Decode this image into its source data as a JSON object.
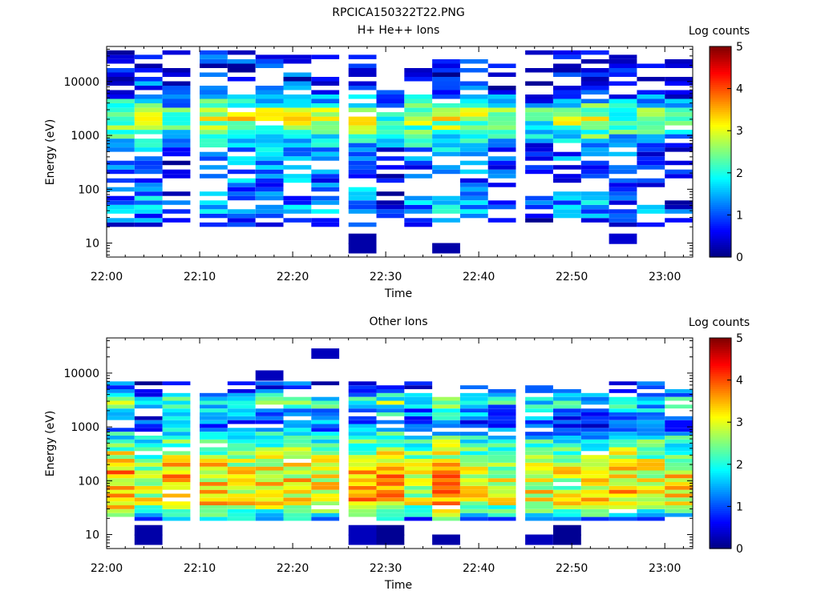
{
  "figure": {
    "title": "RPCICA150322T22.PNG"
  },
  "palette": {
    "background": "#ffffff",
    "axis": "#000000"
  },
  "colormap": {
    "name": "jet",
    "stops": [
      "#00007f",
      "#0000ff",
      "#007fff",
      "#00ffff",
      "#7fff7f",
      "#ffff00",
      "#ff7f00",
      "#ff0000",
      "#7f0000"
    ]
  },
  "chart_data": [
    {
      "type": "heatmap",
      "title": "H+ He++ Ions",
      "xlabel": "Time",
      "ylabel": "Energy (eV)",
      "yscale": "log",
      "ylim": [
        5.5,
        45000
      ],
      "xlim": [
        "22:00",
        "23:03"
      ],
      "x_ticks": [
        "22:00",
        "22:10",
        "22:20",
        "22:30",
        "22:40",
        "22:50",
        "23:00"
      ],
      "y_ticks": [
        "10",
        "100",
        "1000",
        "10000"
      ],
      "colorbar": {
        "label": "Log counts",
        "range": [
          0,
          5
        ],
        "ticks": [
          "0",
          "1",
          "2",
          "3",
          "4",
          "5"
        ]
      },
      "grid": false,
      "time_bins": [
        "22:00",
        "22:03",
        "22:06",
        "22:10",
        "22:13",
        "22:16",
        "22:19",
        "22:22",
        "22:26",
        "22:29",
        "22:32",
        "22:35",
        "22:38",
        "22:41",
        "22:45",
        "22:48",
        "22:51",
        "22:54",
        "22:57",
        "23:00"
      ],
      "energy_min_eV": 20,
      "energy_max_eV": 38000,
      "energy_bins": 40,
      "profile_log_counts": {
        "energy_eV": [
          20,
          40,
          80,
          200,
          500,
          1000,
          2000,
          3000,
          6000,
          12000,
          30000
        ],
        "mean": [
          0.3,
          1.2,
          0.9,
          0.8,
          1.0,
          1.9,
          2.6,
          2.3,
          0.8,
          0.4,
          0.3
        ]
      },
      "extra_pixels": [
        {
          "time": "22:26",
          "energy_eV": 8,
          "log_counts": 0.2
        },
        {
          "time": "22:26",
          "energy_eV": 12,
          "log_counts": 0.2
        },
        {
          "time": "22:35",
          "energy_eV": 8,
          "log_counts": 0.2
        },
        {
          "time": "22:54",
          "energy_eV": 12,
          "log_counts": 0.4
        }
      ]
    },
    {
      "type": "heatmap",
      "title": "Other Ions",
      "xlabel": "Time",
      "ylabel": "Energy (eV)",
      "yscale": "log",
      "ylim": [
        5.5,
        45000
      ],
      "xlim": [
        "22:00",
        "23:03"
      ],
      "x_ticks": [
        "22:00",
        "22:10",
        "22:20",
        "22:30",
        "22:40",
        "22:50",
        "23:00"
      ],
      "y_ticks": [
        "10",
        "100",
        "1000",
        "10000"
      ],
      "colorbar": {
        "label": "Log counts",
        "range": [
          0,
          5
        ],
        "ticks": [
          "0",
          "1",
          "2",
          "3",
          "4",
          "5"
        ]
      },
      "grid": false,
      "time_bins": [
        "22:00",
        "22:03",
        "22:06",
        "22:10",
        "22:13",
        "22:16",
        "22:19",
        "22:22",
        "22:26",
        "22:29",
        "22:32",
        "22:35",
        "22:38",
        "22:41",
        "22:45",
        "22:48",
        "22:51",
        "22:54",
        "22:57",
        "23:00"
      ],
      "energy_min_eV": 18,
      "energy_max_eV": 7000,
      "energy_bins": 36,
      "profile_log_counts": {
        "energy_eV": [
          18,
          25,
          40,
          70,
          150,
          300,
          600,
          1000,
          2000,
          3000,
          5000
        ],
        "mean": [
          1.2,
          2.1,
          3.2,
          3.0,
          3.1,
          2.6,
          1.9,
          1.0,
          1.4,
          2.2,
          0.7
        ]
      },
      "extra_pixels": [
        {
          "time": "22:03",
          "energy_eV": 8,
          "log_counts": 0.2
        },
        {
          "time": "22:03",
          "energy_eV": 12,
          "log_counts": 0.2
        },
        {
          "time": "22:16",
          "energy_eV": 9000,
          "log_counts": 0.3
        },
        {
          "time": "22:22",
          "energy_eV": 23000,
          "log_counts": 0.3
        },
        {
          "time": "22:26",
          "energy_eV": 8,
          "log_counts": 0.3
        },
        {
          "time": "22:26",
          "energy_eV": 12,
          "log_counts": 0.3
        },
        {
          "time": "22:29",
          "energy_eV": 8,
          "log_counts": 0.1
        },
        {
          "time": "22:29",
          "energy_eV": 12,
          "log_counts": 0.1
        },
        {
          "time": "22:35",
          "energy_eV": 8,
          "log_counts": 0.2
        },
        {
          "time": "22:45",
          "energy_eV": 8,
          "log_counts": 0.3
        },
        {
          "time": "22:48",
          "energy_eV": 8,
          "log_counts": 0.1
        },
        {
          "time": "22:48",
          "energy_eV": 12,
          "log_counts": 0.1
        }
      ]
    }
  ]
}
